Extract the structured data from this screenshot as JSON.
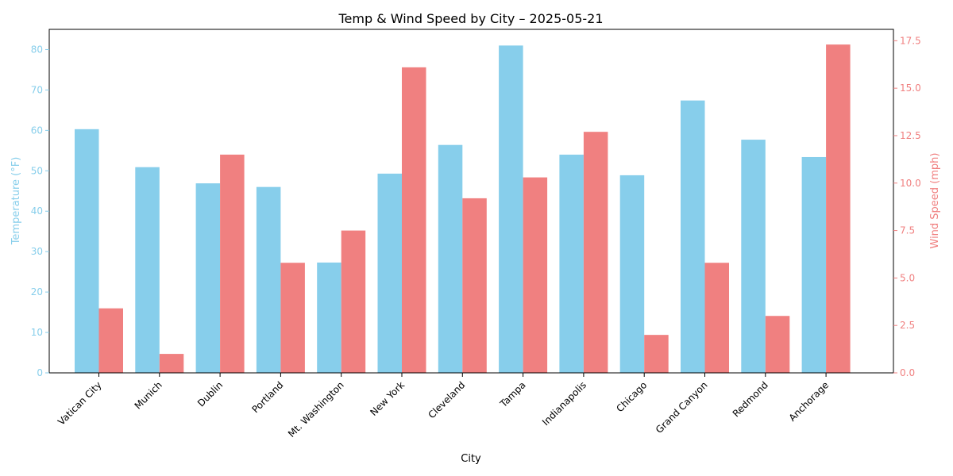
{
  "chart_data": {
    "type": "bar",
    "title": "Temp & Wind Speed by City – 2025-05-21",
    "xlabel": "City",
    "categories": [
      "Vatican City",
      "Munich",
      "Dublin",
      "Portland",
      "Mt. Washington",
      "New York",
      "Cleveland",
      "Tampa",
      "Indianapolis",
      "Chicago",
      "Grand Canyon",
      "Redmond",
      "Anchorage"
    ],
    "left_axis": {
      "label": "Temperature (°F)",
      "ylim": [
        0,
        85
      ],
      "ticks": [
        0,
        10,
        20,
        30,
        40,
        50,
        60,
        70,
        80
      ],
      "tick_labels": [
        "0",
        "10",
        "20",
        "30",
        "40",
        "50",
        "60",
        "70",
        "80"
      ],
      "color": "#87ceeb"
    },
    "right_axis": {
      "label": "Wind Speed (mph)",
      "ylim": [
        0,
        18.1
      ],
      "ticks": [
        0,
        2.5,
        5,
        7.5,
        10,
        12.5,
        15,
        17.5
      ],
      "tick_labels": [
        "0.0",
        "2.5",
        "5.0",
        "7.5",
        "10.0",
        "12.5",
        "15.0",
        "17.5"
      ],
      "color": "#f08080"
    },
    "series": [
      {
        "axis": "left",
        "color": "#87ceeb",
        "values": [
          60.3,
          50.9,
          46.9,
          46.0,
          27.3,
          49.3,
          56.4,
          81.0,
          54.0,
          48.9,
          67.4,
          57.7,
          53.4
        ]
      },
      {
        "axis": "right",
        "color": "#f08080",
        "values": [
          3.4,
          1.0,
          11.5,
          5.8,
          7.5,
          16.1,
          9.2,
          10.3,
          12.7,
          2.0,
          5.8,
          3.0,
          17.3
        ]
      }
    ],
    "grid": false,
    "legend": "none"
  }
}
